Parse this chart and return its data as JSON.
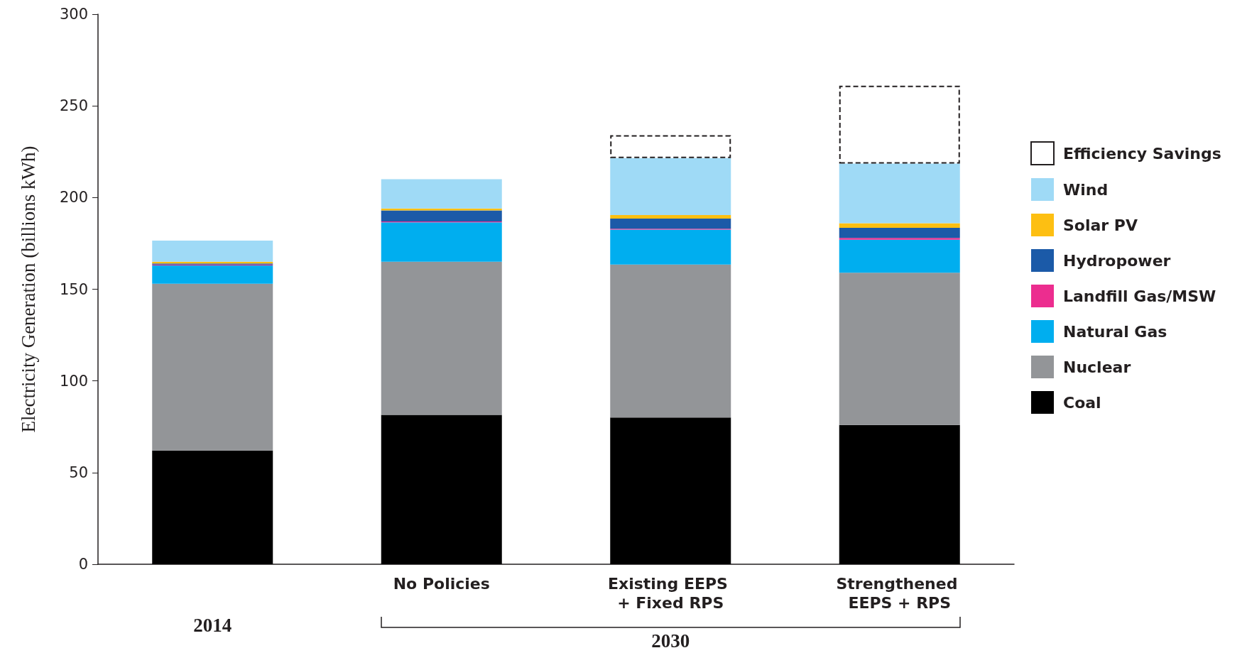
{
  "chart_data": {
    "type": "bar",
    "stacked": true,
    "ylabel": "Electricity Generation (billions kWh)",
    "categories": [
      null,
      "No Policies",
      "Existing EEPS + Fixed RPS",
      "Strengthened EEPS + RPS"
    ],
    "series": [
      {
        "name": "Coal",
        "color": "#000000",
        "values": [
          62,
          81.5,
          80,
          76
        ]
      },
      {
        "name": "Nuclear",
        "color": "#939598",
        "values": [
          91,
          83.5,
          83.5,
          83
        ]
      },
      {
        "name": "Natural Gas",
        "color": "#00aeef",
        "values": [
          10,
          21.5,
          19,
          18
        ]
      },
      {
        "name": "Landfill Gas/MSW",
        "color": "#ec2d8f",
        "values": [
          0.5,
          0.5,
          0.5,
          1
        ]
      },
      {
        "name": "Hydropower",
        "color": "#1b5aa8",
        "values": [
          0.5,
          6,
          5.5,
          5.5
        ]
      },
      {
        "name": "Solar PV",
        "color": "#fdbf12",
        "values": [
          1,
          1,
          2,
          2.5
        ]
      },
      {
        "name": "Wind",
        "color": "#9fdaf6",
        "values": [
          11.5,
          16,
          31,
          32.5
        ]
      },
      {
        "name": "Efficiency Savings",
        "color": "#ffffff",
        "line_style": "dashed",
        "values": [
          null,
          null,
          12.5,
          42.5
        ]
      }
    ],
    "ylim": [
      0,
      300
    ],
    "yticks": [
      0,
      50,
      100,
      150,
      200,
      250,
      300
    ],
    "grid": false,
    "legend": "right",
    "annotations": [
      "2014",
      "2030"
    ]
  }
}
